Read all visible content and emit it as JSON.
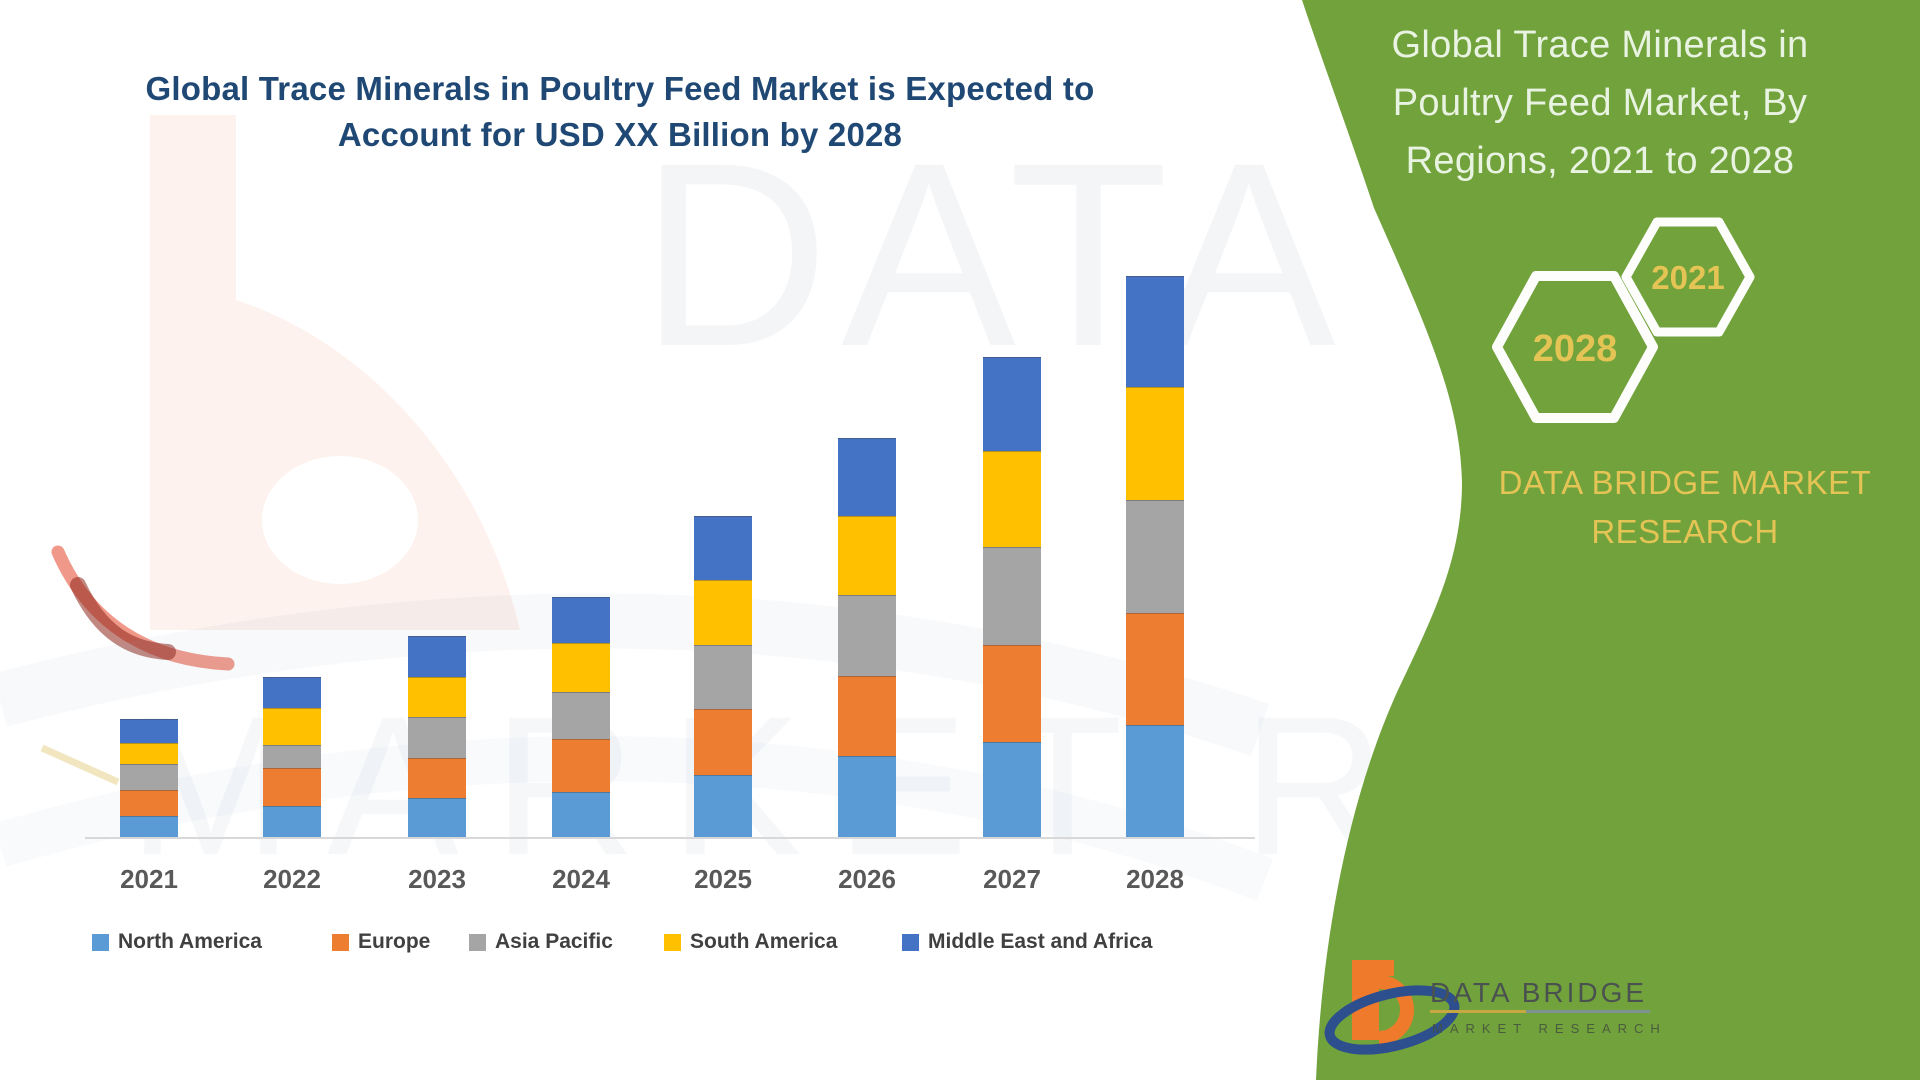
{
  "watermark": {
    "line1": "DATA BRIDGE",
    "line2": "MARKET RESEARCH"
  },
  "side_panel": {
    "title": "Global Trace Minerals in Poultry Feed Market, By Regions, 2021 to 2028",
    "caption": "DATA BRIDGE MARKET RESEARCH",
    "hexagons": [
      {
        "label": "2021"
      },
      {
        "label": "2028"
      }
    ],
    "background_color": "#71A23B",
    "accent_text_color": "#E4C455"
  },
  "logo": {
    "name": "DATA BRIDGE",
    "sub": "MARKET RESEARCH"
  },
  "chart_data": {
    "type": "bar",
    "stacked": true,
    "title": "Global Trace Minerals in Poultry Feed Market is Expected to Account for USD XX Billion by 2028",
    "title_color": "#1F4874",
    "categories": [
      "2021",
      "2022",
      "2023",
      "2024",
      "2025",
      "2026",
      "2027",
      "2028"
    ],
    "series": [
      {
        "name": "North America",
        "color": "#5B9BD5",
        "values": [
          22,
          32,
          40,
          46,
          63,
          82,
          96,
          113
        ]
      },
      {
        "name": "Europe",
        "color": "#ED7D31",
        "values": [
          26,
          38,
          40,
          53,
          66,
          80,
          97,
          112
        ]
      },
      {
        "name": "Asia Pacific",
        "color": "#A5A5A5",
        "values": [
          26,
          23,
          41,
          47,
          64,
          81,
          98,
          113
        ]
      },
      {
        "name": "South America",
        "color": "#FFC000",
        "values": [
          21,
          37,
          40,
          49,
          65,
          79,
          96,
          113
        ]
      },
      {
        "name": "Middle East and Africa",
        "color": "#4472C4",
        "values": [
          24,
          31,
          41,
          46,
          64,
          78,
          94,
          111
        ]
      }
    ],
    "totals": [
      119,
      161,
      202,
      241,
      322,
      400,
      481,
      562
    ],
    "value_axis": {
      "visible": false,
      "unit": "relative units (y-axis not labeled, values estimated from bar heights)"
    },
    "xlabel": "",
    "ylabel": "",
    "grid": false,
    "legend_position": "bottom"
  }
}
